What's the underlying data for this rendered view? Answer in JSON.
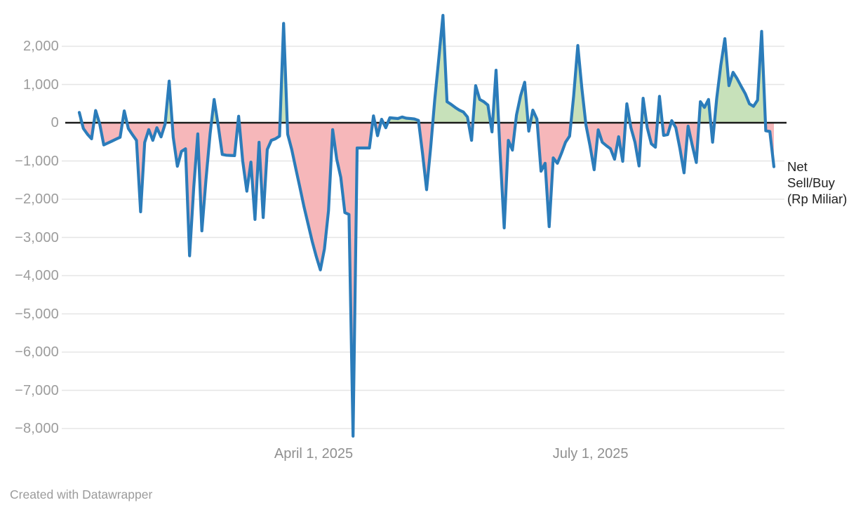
{
  "chart_data": {
    "type": "area-line",
    "title": "",
    "series_label": "Net Sell/Buy (Rp Miliar)",
    "ylabel": "Net Sell/Buy (Rp Miliar)",
    "xlabel": "",
    "ylim": [
      -8500,
      2900
    ],
    "grid": true,
    "legend": "none",
    "y_ticks": [
      {
        "label": "2,000",
        "value": 2000
      },
      {
        "label": "1,000",
        "value": 1000
      },
      {
        "label": "0",
        "value": 0
      },
      {
        "label": "−1,000",
        "value": -1000
      },
      {
        "label": "−2,000",
        "value": -2000
      },
      {
        "label": "−3,000",
        "value": -3000
      },
      {
        "label": "−4,000",
        "value": -4000
      },
      {
        "label": "−5,000",
        "value": -5000
      },
      {
        "label": "−6,000",
        "value": -6000
      },
      {
        "label": "−7,000",
        "value": -7000
      },
      {
        "label": "−8,000",
        "value": -8000
      }
    ],
    "x_ticks": [
      {
        "label": "April 1, 2025",
        "pos": 0.3374
      },
      {
        "label": "July 1, 2025",
        "pos": 0.736
      }
    ],
    "values": [
      270,
      -150,
      -300,
      -420,
      320,
      -30,
      -580,
      -530,
      -480,
      -430,
      -380,
      310,
      -150,
      -310,
      -460,
      -2330,
      -515,
      -180,
      -460,
      -130,
      -370,
      -35,
      1090,
      -380,
      -1140,
      -750,
      -680,
      -3480,
      -1700,
      -290,
      -2830,
      -1500,
      -300,
      610,
      -75,
      -830,
      -850,
      -855,
      -860,
      170,
      -1000,
      -1790,
      -1030,
      -2530,
      -510,
      -2480,
      -700,
      -460,
      -420,
      -350,
      2600,
      -300,
      -700,
      -1200,
      -1700,
      -2200,
      -2650,
      -3100,
      -3500,
      -3850,
      -3300,
      -2300,
      -180,
      -950,
      -1430,
      -2350,
      -2400,
      -8200,
      -660,
      -660,
      -660,
      -660,
      180,
      -340,
      90,
      -130,
      130,
      120,
      110,
      150,
      120,
      110,
      100,
      60,
      -800,
      -1750,
      -650,
      600,
      1700,
      2810,
      550,
      480,
      400,
      330,
      280,
      150,
      -460,
      970,
      610,
      550,
      460,
      -240,
      1375,
      -800,
      -2750,
      -460,
      -715,
      200,
      700,
      1060,
      -220,
      330,
      100,
      -1270,
      -1060,
      -2720,
      -920,
      -1060,
      -800,
      -510,
      -350,
      700,
      2020,
      900,
      -55,
      -600,
      -1230,
      -185,
      -510,
      -600,
      -680,
      -955,
      -365,
      -1010,
      495,
      -130,
      -510,
      -1130,
      640,
      -130,
      -550,
      -640,
      690,
      -330,
      -310,
      55,
      -130,
      -680,
      -1310,
      -90,
      -580,
      -1040,
      550,
      400,
      610,
      -510,
      640,
      1500,
      2200,
      970,
      1320,
      1150,
      950,
      760,
      495,
      430,
      590,
      2390,
      -210,
      -230,
      -1150
    ]
  },
  "colors": {
    "line": "#2b7cba",
    "positive_fill": "#c7e1ba",
    "negative_fill": "#f6b7ba",
    "grid": "#e5e5e5",
    "zero_line": "#1a1a1a",
    "y_axis_text": "#9c9c9c",
    "x_axis_text": "#8f8f8f",
    "annotation_text": "#222222",
    "credit_text": "#9b9b9b"
  },
  "footer": {
    "credit": "Created with Datawrapper"
  }
}
